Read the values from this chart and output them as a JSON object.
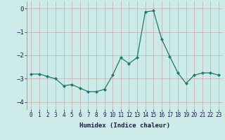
{
  "x": [
    0,
    1,
    2,
    3,
    4,
    5,
    6,
    7,
    8,
    9,
    10,
    11,
    12,
    13,
    14,
    15,
    16,
    17,
    18,
    19,
    20,
    21,
    22,
    23
  ],
  "y": [
    -2.8,
    -2.8,
    -2.9,
    -3.0,
    -3.3,
    -3.25,
    -3.4,
    -3.55,
    -3.55,
    -3.45,
    -2.85,
    -2.1,
    -2.35,
    -2.1,
    -0.15,
    -0.1,
    -1.3,
    -2.05,
    -2.75,
    -3.2,
    -2.85,
    -2.75,
    -2.75,
    -2.85
  ],
  "line_color": "#1a7a6e",
  "marker": "D",
  "marker_size": 2.0,
  "bg_color": "#cceae8",
  "grid_color_major": "#b0d0ce",
  "grid_color_minor": "#c4e0de",
  "xlabel": "Humidex (Indice chaleur)",
  "ylabel": "",
  "title": "",
  "xlim": [
    -0.5,
    23.5
  ],
  "ylim": [
    -4.3,
    0.3
  ],
  "yticks": [
    0,
    -1,
    -2,
    -3,
    -4
  ],
  "xticks": [
    0,
    1,
    2,
    3,
    4,
    5,
    6,
    7,
    8,
    9,
    10,
    11,
    12,
    13,
    14,
    15,
    16,
    17,
    18,
    19,
    20,
    21,
    22,
    23
  ]
}
